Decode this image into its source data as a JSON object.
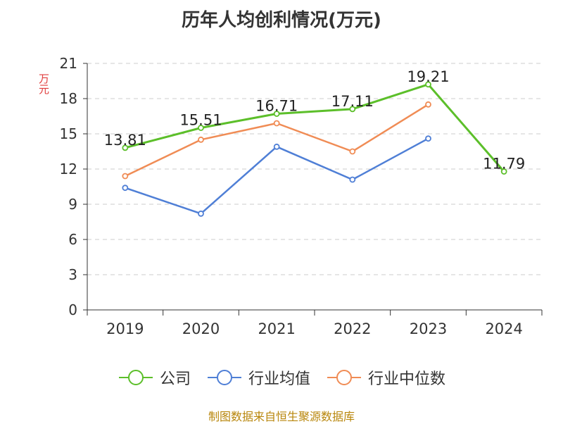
{
  "title": "历年人均创利情况(万元)",
  "unit_label": "万元",
  "source": "制图数据来自恒生聚源数据库",
  "colors": {
    "company": "#5cbf2a",
    "industry_avg": "#4f7fd6",
    "industry_median": "#f08c55",
    "grid": "#cccccc",
    "axis": "#333333",
    "unit": "#e03c3c",
    "source": "#b8860b"
  },
  "chart_data": {
    "type": "line",
    "title": "历年人均创利情况(万元)",
    "ylabel": "万元",
    "xlabel": "",
    "categories": [
      "2019",
      "2020",
      "2021",
      "2022",
      "2023",
      "2024"
    ],
    "ylim": [
      0,
      21
    ],
    "yticks": [
      0,
      3,
      6,
      9,
      12,
      15,
      18,
      21
    ],
    "grid": "horizontal-dashed",
    "legend": "bottom",
    "series": [
      {
        "name": "公司",
        "color": "#5cbf2a",
        "values": [
          13.81,
          15.51,
          16.71,
          17.11,
          19.21,
          11.79
        ],
        "labels": [
          "13.81",
          "15.51",
          "16.71",
          "17.11",
          "19.21",
          "11.79"
        ]
      },
      {
        "name": "行业均值",
        "color": "#4f7fd6",
        "values": [
          10.4,
          8.2,
          13.9,
          11.1,
          14.6,
          null
        ],
        "labels": []
      },
      {
        "name": "行业中位数",
        "color": "#f08c55",
        "values": [
          11.4,
          14.5,
          15.9,
          13.5,
          17.5,
          null
        ],
        "labels": []
      }
    ]
  }
}
